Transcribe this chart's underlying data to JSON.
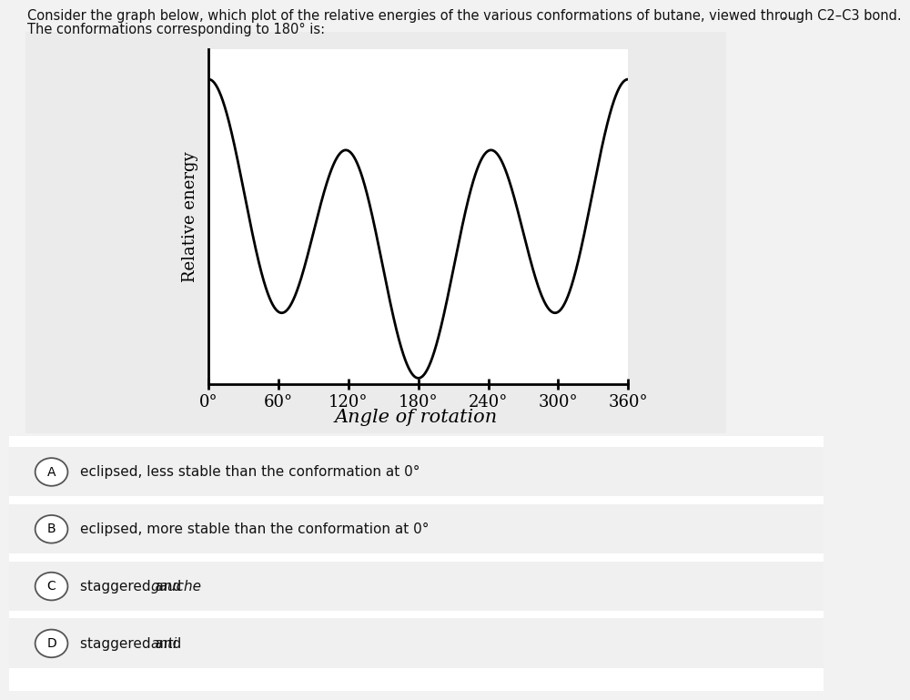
{
  "title_line1": "Consider the graph below, which plot of the relative energies of the various conformations of butane, viewed through C2–C3 bond.",
  "title_line2": "The conformations corresponding to 180° is:",
  "xlabel": "Angle of rotation",
  "ylabel": "Relative energy",
  "xtick_labels": [
    "0°",
    "60°",
    "120°",
    "180°",
    "240°",
    "300°",
    "360°"
  ],
  "xtick_values": [
    0,
    60,
    120,
    180,
    240,
    300,
    360
  ],
  "choices": [
    {
      "label": "A",
      "text_plain": "eclipsed, less stable than the conformation at 0°",
      "text_parts": null
    },
    {
      "label": "B",
      "text_plain": "eclipsed, more stable than the conformation at 0°",
      "text_parts": null
    },
    {
      "label": "C",
      "text_plain": null,
      "text_parts": [
        "staggered and ",
        "gauche"
      ]
    },
    {
      "label": "D",
      "text_plain": null,
      "text_parts": [
        "staggered and ",
        "anti"
      ]
    }
  ],
  "curve_color": "#000000",
  "outer_bg_color": "#f2f2f2",
  "chart_panel_bg": "#ebebeb",
  "plot_bg_color": "#ffffff",
  "choice_bg_color": "#f5f5f5",
  "line_width": 2.0,
  "dots_text": "⋯",
  "dots_color": "#444444",
  "V1": 1.3,
  "V2": -0.05,
  "V3": 2.93
}
